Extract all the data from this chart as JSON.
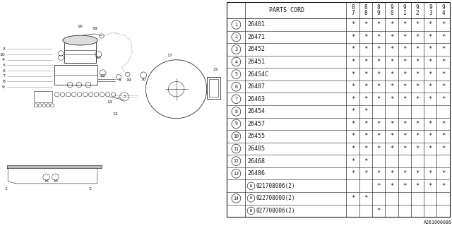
{
  "diagram_label": "A261000086",
  "rows": [
    [
      "1",
      "26401",
      true,
      true,
      true,
      true,
      true,
      true,
      true,
      true
    ],
    [
      "2",
      "26471",
      true,
      true,
      true,
      true,
      true,
      true,
      true,
      true
    ],
    [
      "3",
      "26452",
      true,
      true,
      true,
      true,
      true,
      true,
      true,
      true
    ],
    [
      "4",
      "26451",
      true,
      true,
      true,
      true,
      true,
      true,
      true,
      true
    ],
    [
      "5",
      "26454C",
      true,
      true,
      true,
      true,
      true,
      true,
      true,
      true
    ],
    [
      "6",
      "26487",
      true,
      true,
      true,
      true,
      true,
      true,
      true,
      true
    ],
    [
      "7",
      "26463",
      true,
      true,
      true,
      true,
      true,
      true,
      true,
      true
    ],
    [
      "8",
      "26454",
      true,
      true,
      false,
      false,
      false,
      false,
      false,
      false
    ],
    [
      "9",
      "26457",
      true,
      true,
      true,
      true,
      true,
      true,
      true,
      true
    ],
    [
      "10",
      "26455",
      true,
      true,
      true,
      true,
      true,
      true,
      true,
      true
    ],
    [
      "11",
      "26485",
      true,
      true,
      true,
      true,
      true,
      true,
      true,
      true
    ],
    [
      "12",
      "26468",
      true,
      true,
      false,
      false,
      false,
      false,
      false,
      false
    ],
    [
      "13",
      "26486",
      true,
      true,
      true,
      true,
      true,
      true,
      true,
      true
    ],
    [
      "",
      "N021708006(2)",
      false,
      false,
      true,
      true,
      true,
      true,
      true,
      true
    ],
    [
      "14",
      "N022708000(2)",
      true,
      true,
      false,
      false,
      false,
      false,
      false,
      false
    ],
    [
      "",
      "N027708006(2)",
      false,
      false,
      true,
      false,
      false,
      false,
      false,
      false
    ]
  ],
  "year_cols": [
    "8\n7",
    "8\n8",
    "8\n9",
    "9\n0",
    "9\n1",
    "9\n2",
    "9\n3",
    "9\n4"
  ],
  "bg_color": "#ffffff",
  "line_color": "#1a1a1a",
  "gray_color": "#888888",
  "font_size_table": 6.0,
  "font_size_header": 6.0,
  "font_size_label": 4.5
}
